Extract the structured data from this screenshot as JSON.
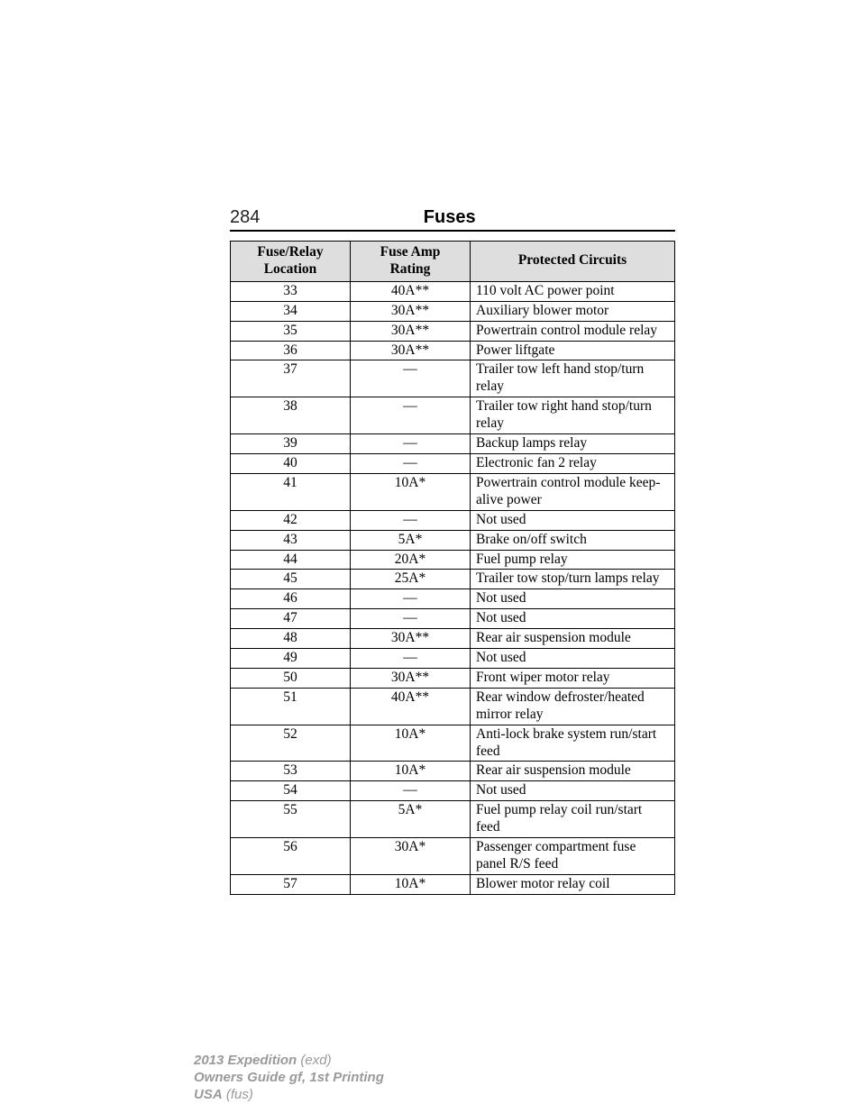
{
  "header": {
    "page_number": "284",
    "title": "Fuses"
  },
  "table": {
    "columns": [
      {
        "line1": "Fuse/Relay",
        "line2": "Location"
      },
      {
        "line1": "Fuse Amp",
        "line2": "Rating"
      },
      {
        "line1": "Protected Circuits",
        "line2": ""
      }
    ],
    "rows": [
      {
        "loc": "33",
        "amp": "40A**",
        "circuit": "110 volt AC power point"
      },
      {
        "loc": "34",
        "amp": "30A**",
        "circuit": "Auxiliary blower motor"
      },
      {
        "loc": "35",
        "amp": "30A**",
        "circuit": "Powertrain control module relay"
      },
      {
        "loc": "36",
        "amp": "30A**",
        "circuit": "Power liftgate"
      },
      {
        "loc": "37",
        "amp": "—",
        "circuit": "Trailer tow left hand stop/turn relay"
      },
      {
        "loc": "38",
        "amp": "—",
        "circuit": "Trailer tow right hand stop/turn relay"
      },
      {
        "loc": "39",
        "amp": "—",
        "circuit": "Backup lamps relay"
      },
      {
        "loc": "40",
        "amp": "—",
        "circuit": "Electronic fan 2 relay"
      },
      {
        "loc": "41",
        "amp": "10A*",
        "circuit": "Powertrain control module keep-alive power"
      },
      {
        "loc": "42",
        "amp": "—",
        "circuit": "Not used"
      },
      {
        "loc": "43",
        "amp": "5A*",
        "circuit": "Brake on/off switch"
      },
      {
        "loc": "44",
        "amp": "20A*",
        "circuit": "Fuel pump relay"
      },
      {
        "loc": "45",
        "amp": "25A*",
        "circuit": "Trailer tow stop/turn lamps relay"
      },
      {
        "loc": "46",
        "amp": "—",
        "circuit": "Not used"
      },
      {
        "loc": "47",
        "amp": "—",
        "circuit": "Not used"
      },
      {
        "loc": "48",
        "amp": "30A**",
        "circuit": "Rear air suspension module"
      },
      {
        "loc": "49",
        "amp": "—",
        "circuit": "Not used"
      },
      {
        "loc": "50",
        "amp": "30A**",
        "circuit": "Front wiper motor relay"
      },
      {
        "loc": "51",
        "amp": "40A**",
        "circuit": "Rear window defroster/heated mirror relay"
      },
      {
        "loc": "52",
        "amp": "10A*",
        "circuit": "Anti-lock brake system run/start feed"
      },
      {
        "loc": "53",
        "amp": "10A*",
        "circuit": "Rear air suspension module"
      },
      {
        "loc": "54",
        "amp": "—",
        "circuit": "Not used"
      },
      {
        "loc": "55",
        "amp": "5A*",
        "circuit": "Fuel pump relay coil run/start feed"
      },
      {
        "loc": "56",
        "amp": "30A*",
        "circuit": "Passenger compartment fuse panel R/S feed"
      },
      {
        "loc": "57",
        "amp": "10A*",
        "circuit": "Blower motor relay coil"
      }
    ]
  },
  "footer": {
    "line1_bold": "2013 Expedition",
    "line1_rest": " (exd)",
    "line2_bold": "Owners Guide gf, 1st Printing",
    "line3_bold": "USA",
    "line3_rest": " (fus)"
  }
}
